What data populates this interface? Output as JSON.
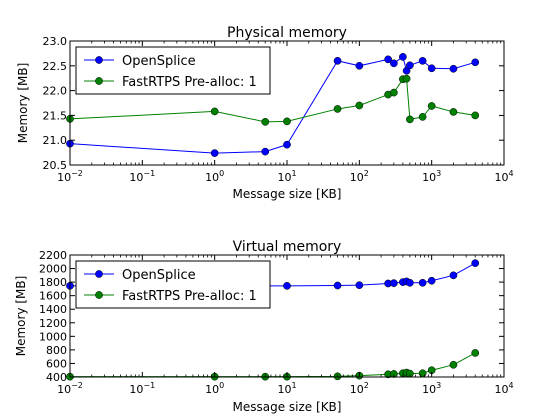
{
  "chart_data": [
    {
      "type": "line",
      "title": "Physical memory",
      "xlabel": "Message size [KB]",
      "ylabel": "Memory [MB]",
      "x_scale": "log",
      "xlim": [
        0.01,
        10000
      ],
      "ylim": [
        20.5,
        23.0
      ],
      "x_tick_labels": [
        {
          "base": "10",
          "exp": "−2"
        },
        {
          "base": "10",
          "exp": "−1"
        },
        {
          "base": "10",
          "exp": "0"
        },
        {
          "base": "10",
          "exp": "1"
        },
        {
          "base": "10",
          "exp": "2"
        },
        {
          "base": "10",
          "exp": "3"
        },
        {
          "base": "10",
          "exp": "4"
        }
      ],
      "y_tick_labels": [
        "20.5",
        "21.0",
        "21.5",
        "22.0",
        "22.5",
        "23.0"
      ],
      "grid": false,
      "legend_position": "top-left",
      "series": [
        {
          "name": "OpenSplice",
          "color": "#0000ff",
          "x": [
            0.01,
            1,
            5,
            10,
            50,
            100,
            250,
            300,
            400,
            450,
            500,
            750,
            1000,
            2000,
            4000
          ],
          "y": [
            20.93,
            20.74,
            20.77,
            20.91,
            22.6,
            22.5,
            22.63,
            22.55,
            22.68,
            22.4,
            22.51,
            22.6,
            22.45,
            22.44,
            22.57
          ]
        },
        {
          "name": "FastRTPS Pre-alloc: 1",
          "color": "#008000",
          "x": [
            0.01,
            1,
            5,
            10,
            50,
            100,
            250,
            300,
            400,
            450,
            500,
            750,
            1000,
            2000,
            4000
          ],
          "y": [
            21.43,
            21.58,
            21.37,
            21.38,
            21.63,
            21.7,
            21.92,
            21.96,
            22.23,
            22.24,
            21.42,
            21.47,
            21.69,
            21.57,
            21.5
          ]
        }
      ]
    },
    {
      "type": "line",
      "title": "Virtual memory",
      "xlabel": "Message size [KB]",
      "ylabel": "Memory [MB]",
      "x_scale": "log",
      "xlim": [
        0.01,
        10000
      ],
      "ylim": [
        400,
        2200
      ],
      "x_tick_labels": [
        {
          "base": "10",
          "exp": "−2"
        },
        {
          "base": "10",
          "exp": "−1"
        },
        {
          "base": "10",
          "exp": "0"
        },
        {
          "base": "10",
          "exp": "1"
        },
        {
          "base": "10",
          "exp": "2"
        },
        {
          "base": "10",
          "exp": "3"
        },
        {
          "base": "10",
          "exp": "4"
        }
      ],
      "y_tick_labels": [
        "400",
        "600",
        "800",
        "1000",
        "1200",
        "1400",
        "1600",
        "1800",
        "2000",
        "2200"
      ],
      "grid": false,
      "legend_position": "top-left",
      "series": [
        {
          "name": "OpenSplice",
          "color": "#0000ff",
          "x": [
            0.01,
            1,
            5,
            10,
            50,
            100,
            250,
            300,
            400,
            450,
            500,
            750,
            1000,
            2000,
            4000
          ],
          "y": [
            1745,
            1745,
            1745,
            1745,
            1750,
            1755,
            1780,
            1785,
            1800,
            1810,
            1790,
            1790,
            1820,
            1900,
            2080
          ]
        },
        {
          "name": "FastRTPS Pre-alloc: 1",
          "color": "#008000",
          "x": [
            0.01,
            1,
            5,
            10,
            50,
            100,
            250,
            300,
            400,
            450,
            500,
            750,
            1000,
            2000,
            4000
          ],
          "y": [
            405,
            405,
            405,
            405,
            410,
            420,
            440,
            445,
            455,
            465,
            450,
            455,
            500,
            580,
            755
          ]
        }
      ]
    }
  ]
}
